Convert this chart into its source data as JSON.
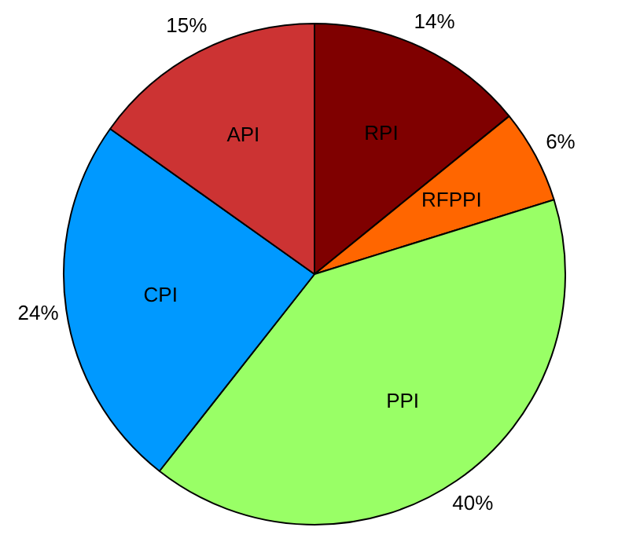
{
  "chart_data": {
    "type": "pie",
    "categories": [
      "RPI",
      "RFPPI",
      "PPI",
      "CPI",
      "API"
    ],
    "values": [
      14,
      6,
      40,
      24,
      15
    ],
    "value_labels": [
      "14%",
      "6%",
      "40%",
      "24%",
      "15%"
    ],
    "colors": [
      "#7f0000",
      "#ff6600",
      "#99ff66",
      "#0099ff",
      "#cc3333"
    ],
    "legend": false
  }
}
